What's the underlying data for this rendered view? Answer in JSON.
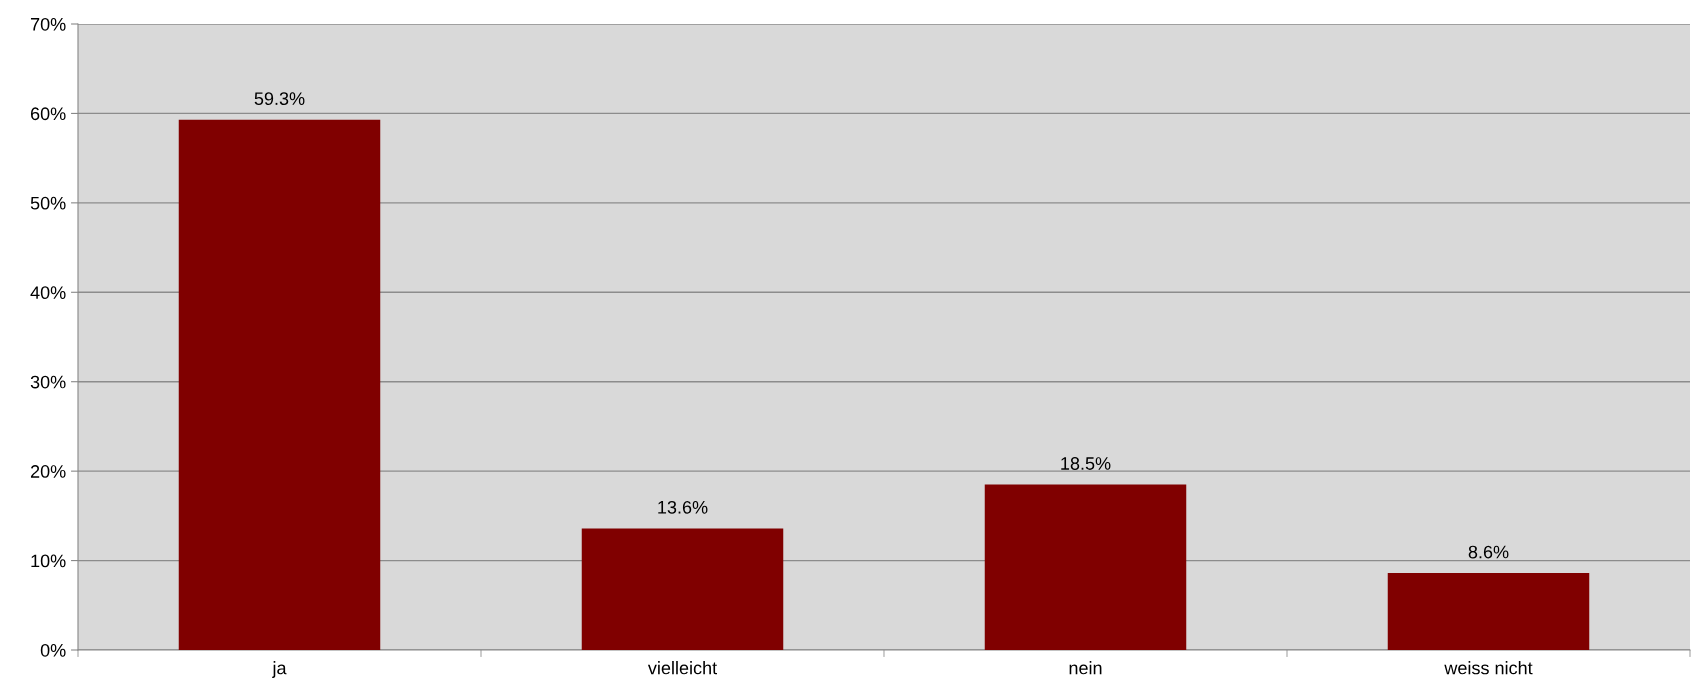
{
  "chart_data": {
    "type": "bar",
    "categories": [
      "ja",
      "vielleicht",
      "nein",
      "weiss nicht"
    ],
    "values": [
      59.3,
      13.6,
      18.5,
      8.6
    ],
    "color": "#800000",
    "value_labels": [
      "59.3%",
      "13.6%",
      "18.5%",
      "8.6%"
    ],
    "ylim": [
      0,
      70
    ],
    "yticks": [
      {
        "value": 0,
        "label": "0%"
      },
      {
        "value": 10,
        "label": "10%"
      },
      {
        "value": 20,
        "label": "20%"
      },
      {
        "value": 30,
        "label": "30%"
      },
      {
        "value": 40,
        "label": "40%"
      },
      {
        "value": 50,
        "label": "50%"
      },
      {
        "value": 60,
        "label": "60%"
      },
      {
        "value": 70,
        "label": "70%"
      }
    ],
    "grid": "y"
  }
}
